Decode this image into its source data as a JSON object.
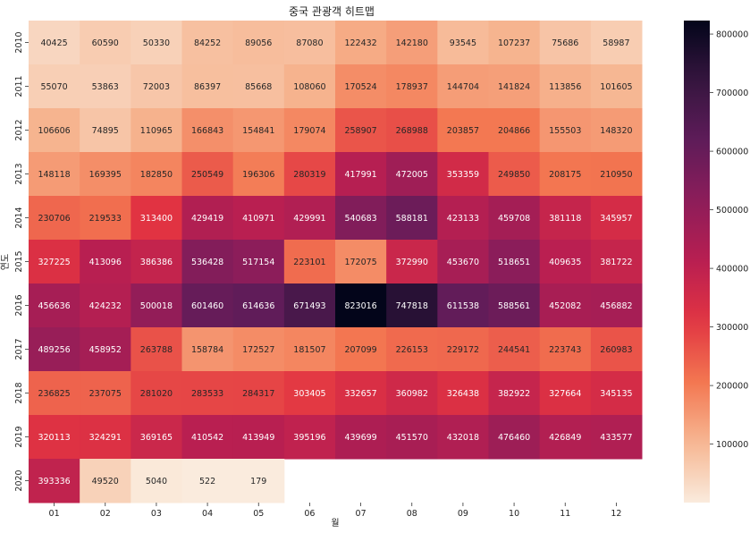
{
  "chart_data": {
    "type": "heatmap",
    "title": "중국 관광객 히트맵",
    "xlabel": "월",
    "ylabel": "연도",
    "x_categories": [
      "01",
      "02",
      "03",
      "04",
      "05",
      "06",
      "07",
      "08",
      "09",
      "10",
      "11",
      "12"
    ],
    "y_categories": [
      "2010",
      "2011",
      "2012",
      "2013",
      "2014",
      "2015",
      "2016",
      "2017",
      "2018",
      "2019",
      "2020"
    ],
    "values": [
      [
        40425,
        60590,
        50330,
        84252,
        89056,
        87080,
        122432,
        142180,
        93545,
        107237,
        75686,
        58987
      ],
      [
        55070,
        53863,
        72003,
        86397,
        85668,
        108060,
        170524,
        178937,
        144704,
        141824,
        113856,
        101605
      ],
      [
        106606,
        74895,
        110965,
        166843,
        154841,
        179074,
        258907,
        268988,
        203857,
        204866,
        155503,
        148320
      ],
      [
        148118,
        169395,
        182850,
        250549,
        196306,
        280319,
        417991,
        472005,
        353359,
        249850,
        208175,
        210950
      ],
      [
        230706,
        219533,
        313400,
        429419,
        410971,
        429991,
        540683,
        588181,
        423133,
        459708,
        381118,
        345957
      ],
      [
        327225,
        413096,
        386386,
        536428,
        517154,
        223101,
        172075,
        372990,
        453670,
        518651,
        409635,
        381722
      ],
      [
        456636,
        424232,
        500018,
        601460,
        614636,
        671493,
        823016,
        747818,
        611538,
        588561,
        452082,
        456882
      ],
      [
        489256,
        458952,
        263788,
        158784,
        172527,
        181507,
        207099,
        226153,
        229172,
        244541,
        223743,
        260983
      ],
      [
        236825,
        237075,
        281020,
        283533,
        284317,
        303405,
        332657,
        360982,
        326438,
        382922,
        327664,
        345135
      ],
      [
        320113,
        324291,
        369165,
        410542,
        413949,
        395196,
        439699,
        451570,
        432018,
        476460,
        426849,
        433577
      ],
      [
        393336,
        49520,
        5040,
        522,
        179,
        null,
        null,
        null,
        null,
        null,
        null,
        null
      ]
    ],
    "colorbar": {
      "min": 179,
      "max": 823016,
      "ticks": [
        100000,
        200000,
        300000,
        400000,
        500000,
        600000,
        700000,
        800000
      ],
      "colormap": "rocket_r"
    },
    "grid": false,
    "legend": "colorbar-right"
  }
}
